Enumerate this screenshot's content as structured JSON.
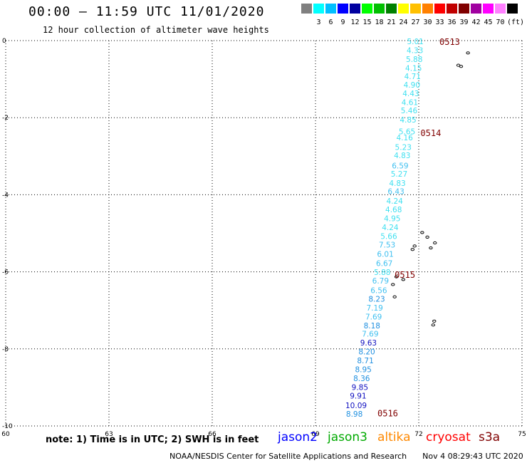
{
  "header": {
    "title": "00:00 – 11:59 UTC 11/01/2020",
    "subtitle": "12 hour collection of altimeter wave heights"
  },
  "legend": {
    "unit": "(ft)",
    "swatches": [
      {
        "color": "#808080",
        "label": ""
      },
      {
        "color": "#00ffff",
        "label": "3"
      },
      {
        "color": "#00bfff",
        "label": "6"
      },
      {
        "color": "#0000ff",
        "label": "9"
      },
      {
        "color": "#0000a0",
        "label": "12"
      },
      {
        "color": "#00ff00",
        "label": "15"
      },
      {
        "color": "#00c000",
        "label": "18"
      },
      {
        "color": "#008000",
        "label": "21"
      },
      {
        "color": "#ffff00",
        "label": "24"
      },
      {
        "color": "#ffc000",
        "label": "27"
      },
      {
        "color": "#ff8000",
        "label": "30"
      },
      {
        "color": "#ff0000",
        "label": "33"
      },
      {
        "color": "#c00000",
        "label": "36"
      },
      {
        "color": "#800000",
        "label": "39"
      },
      {
        "color": "#a000a0",
        "label": "42"
      },
      {
        "color": "#ff00ff",
        "label": "45"
      },
      {
        "color": "#ff80ff",
        "label": "70"
      },
      {
        "color": "#000000",
        "label": ""
      }
    ]
  },
  "axes": {
    "lon_ticks": [
      "60",
      "63",
      "66",
      "69",
      "72",
      "75"
    ],
    "lat_ticks": [
      "0",
      "-2",
      "-4",
      "-6",
      "-8",
      "-10"
    ],
    "lon_range": [
      60,
      75
    ],
    "lat_range": [
      -10,
      0
    ]
  },
  "track": {
    "time_labels": [
      {
        "text": "0513",
        "lon": 72.6,
        "lat": -0.02
      },
      {
        "text": "0514",
        "lon": 72.05,
        "lat": -2.38
      },
      {
        "text": "0515",
        "lon": 71.3,
        "lat": -6.06
      },
      {
        "text": "0516",
        "lon": 70.8,
        "lat": -9.66
      }
    ],
    "points": [
      {
        "v": "5.01",
        "lon": 71.9,
        "lat": -0.02,
        "c": "#40e0f0"
      },
      {
        "v": "4.33",
        "lon": 71.89,
        "lat": -0.25,
        "c": "#40e0f0"
      },
      {
        "v": "5.88",
        "lon": 71.87,
        "lat": -0.48,
        "c": "#40e0f0"
      },
      {
        "v": "4.15",
        "lon": 71.85,
        "lat": -0.71,
        "c": "#40e0f0"
      },
      {
        "v": "4.71",
        "lon": 71.82,
        "lat": -0.92,
        "c": "#40e0f0"
      },
      {
        "v": "4.90",
        "lon": 71.8,
        "lat": -1.15,
        "c": "#40e0f0"
      },
      {
        "v": "4.43",
        "lon": 71.77,
        "lat": -1.37,
        "c": "#40e0f0"
      },
      {
        "v": "4.61",
        "lon": 71.74,
        "lat": -1.6,
        "c": "#40e0f0"
      },
      {
        "v": "5.46",
        "lon": 71.72,
        "lat": -1.81,
        "c": "#40e0f0"
      },
      {
        "v": "4.85",
        "lon": 71.69,
        "lat": -2.05,
        "c": "#40e0f0"
      },
      {
        "v": "5.65",
        "lon": 71.66,
        "lat": -2.36,
        "c": "#40e0f0"
      },
      {
        "v": "4.16",
        "lon": 71.59,
        "lat": -2.51,
        "c": "#40e0f0"
      },
      {
        "v": "5.23",
        "lon": 71.55,
        "lat": -2.76,
        "c": "#40e0f0"
      },
      {
        "v": "4.83",
        "lon": 71.52,
        "lat": -2.98,
        "c": "#40e0f0"
      },
      {
        "v": "6.59",
        "lon": 71.46,
        "lat": -3.24,
        "c": "#40c0f0"
      },
      {
        "v": "5.27",
        "lon": 71.43,
        "lat": -3.46,
        "c": "#40e0f0"
      },
      {
        "v": "4.83",
        "lon": 71.38,
        "lat": -3.7,
        "c": "#40e0f0"
      },
      {
        "v": "6.43",
        "lon": 71.34,
        "lat": -3.91,
        "c": "#40c0f0"
      },
      {
        "v": "4.24",
        "lon": 71.3,
        "lat": -4.16,
        "c": "#40e0f0"
      },
      {
        "v": "4.68",
        "lon": 71.27,
        "lat": -4.38,
        "c": "#40e0f0"
      },
      {
        "v": "4.95",
        "lon": 71.23,
        "lat": -4.61,
        "c": "#40e0f0"
      },
      {
        "v": "4.24",
        "lon": 71.17,
        "lat": -4.84,
        "c": "#40e0f0"
      },
      {
        "v": "5.66",
        "lon": 71.13,
        "lat": -5.07,
        "c": "#40e0f0"
      },
      {
        "v": "7.53",
        "lon": 71.08,
        "lat": -5.3,
        "c": "#40c0f0"
      },
      {
        "v": "6.01",
        "lon": 71.03,
        "lat": -5.54,
        "c": "#40c0f0"
      },
      {
        "v": "6.67",
        "lon": 71.0,
        "lat": -5.78,
        "c": "#40c0f0"
      },
      {
        "v": "5.88",
        "lon": 70.94,
        "lat": -6.01,
        "c": "#40e0f0"
      },
      {
        "v": "6.79",
        "lon": 70.89,
        "lat": -6.23,
        "c": "#40c0f0"
      },
      {
        "v": "6.56",
        "lon": 70.84,
        "lat": -6.48,
        "c": "#40c0f0"
      },
      {
        "v": "8.23",
        "lon": 70.78,
        "lat": -6.7,
        "c": "#2090e0"
      },
      {
        "v": "7.19",
        "lon": 70.72,
        "lat": -6.93,
        "c": "#40c0f0"
      },
      {
        "v": "7.69",
        "lon": 70.69,
        "lat": -7.16,
        "c": "#40c0f0"
      },
      {
        "v": "8.18",
        "lon": 70.64,
        "lat": -7.39,
        "c": "#2090e0"
      },
      {
        "v": "7.69",
        "lon": 70.59,
        "lat": -7.61,
        "c": "#40c0f0"
      },
      {
        "v": "9.63",
        "lon": 70.54,
        "lat": -7.84,
        "c": "#1010c0"
      },
      {
        "v": "8.20",
        "lon": 70.49,
        "lat": -8.07,
        "c": "#2090e0"
      },
      {
        "v": "8.71",
        "lon": 70.45,
        "lat": -8.3,
        "c": "#2090e0"
      },
      {
        "v": "8.95",
        "lon": 70.39,
        "lat": -8.53,
        "c": "#2090e0"
      },
      {
        "v": "8.36",
        "lon": 70.34,
        "lat": -8.76,
        "c": "#2090e0"
      },
      {
        "v": "9.85",
        "lon": 70.29,
        "lat": -8.99,
        "c": "#1010c0"
      },
      {
        "v": "9.91",
        "lon": 70.24,
        "lat": -9.21,
        "c": "#1010c0"
      },
      {
        "v": "10.09",
        "lon": 70.18,
        "lat": -9.46,
        "c": "#1010c0"
      },
      {
        "v": "8.98",
        "lon": 70.13,
        "lat": -9.69,
        "c": "#2090e0"
      }
    ]
  },
  "islands": [
    {
      "lon": 73.43,
      "lat": -0.32
    },
    {
      "lon": 73.15,
      "lat": -0.64
    },
    {
      "lon": 73.23,
      "lat": -0.67
    },
    {
      "lon": 72.1,
      "lat": -4.98
    },
    {
      "lon": 72.25,
      "lat": -5.1
    },
    {
      "lon": 72.47,
      "lat": -5.25
    },
    {
      "lon": 72.35,
      "lat": -5.38
    },
    {
      "lon": 71.88,
      "lat": -5.33
    },
    {
      "lon": 71.82,
      "lat": -5.42
    },
    {
      "lon": 71.35,
      "lat": -6.13
    },
    {
      "lon": 71.55,
      "lat": -6.2
    },
    {
      "lon": 71.25,
      "lat": -6.33
    },
    {
      "lon": 71.3,
      "lat": -6.65
    },
    {
      "lon": 72.45,
      "lat": -7.28
    },
    {
      "lon": 72.42,
      "lat": -7.38
    }
  ],
  "footer": {
    "note": "note:  1) Time is in UTC;  2) SWH is in feet",
    "satellites": [
      {
        "name": "jason2",
        "color": "#0000ff"
      },
      {
        "name": "jason3",
        "color": "#00aa00"
      },
      {
        "name": "altika",
        "color": "#ff8800"
      },
      {
        "name": "cryosat",
        "color": "#ff0000"
      },
      {
        "name": "s3a",
        "color": "#800000"
      }
    ],
    "credit": "NOAA/NESDIS Center for Satellite Applications and Research",
    "timestamp": "Nov  4 08:29:43 UTC 2020"
  }
}
